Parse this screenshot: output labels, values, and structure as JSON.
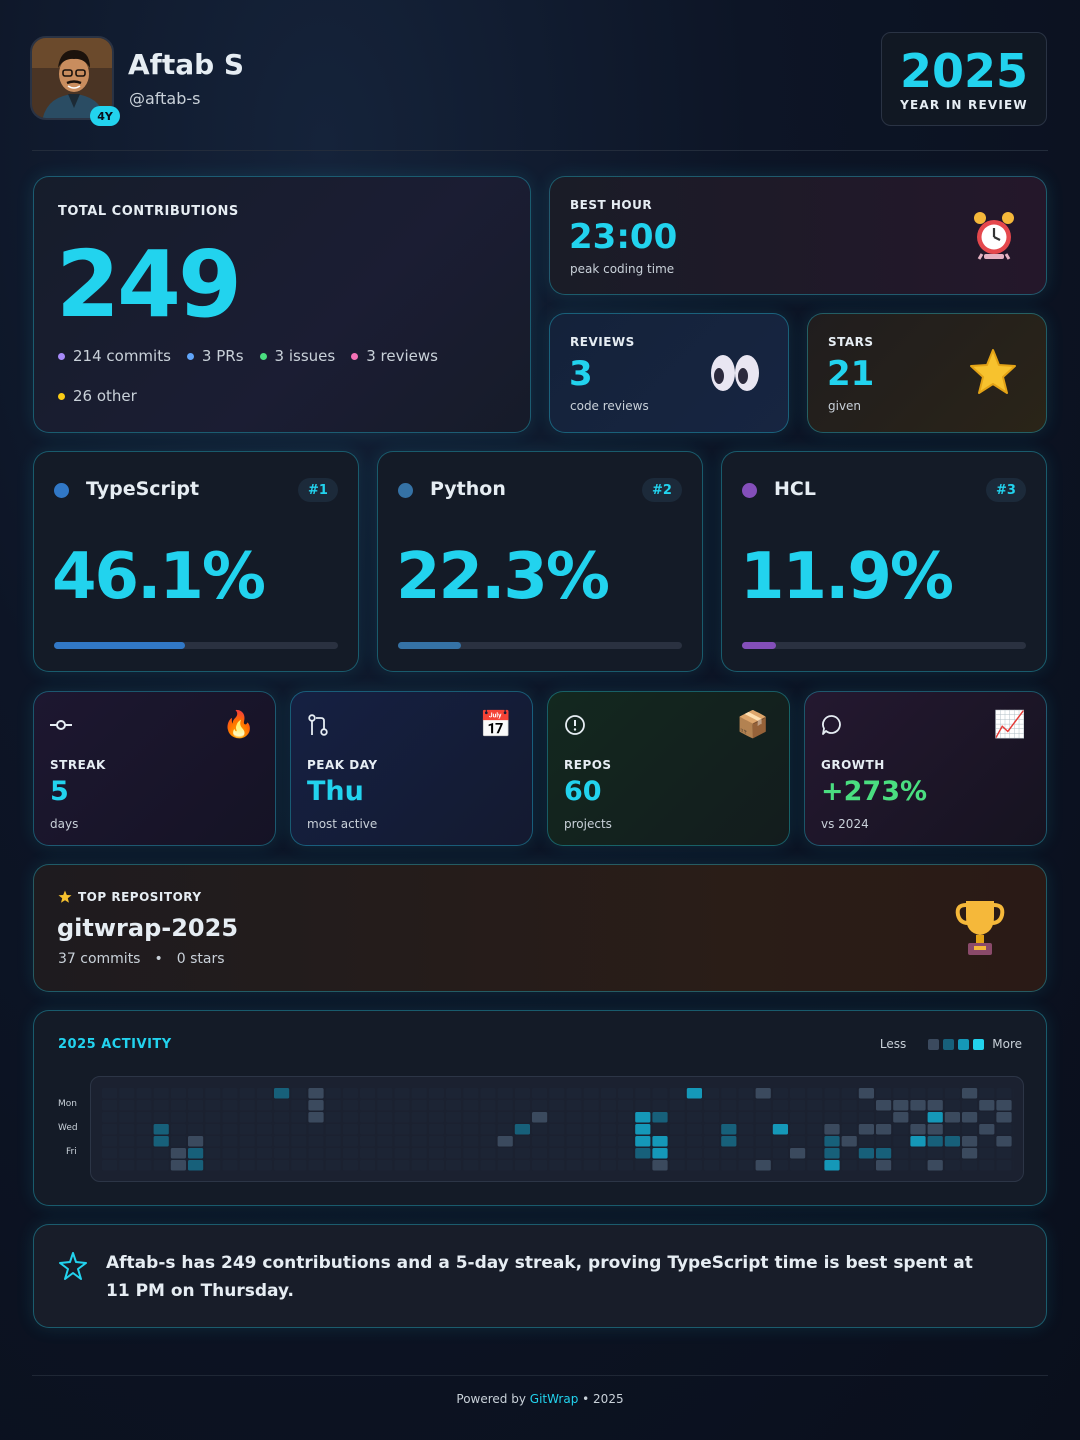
{
  "user": {
    "name": "Aftab S",
    "handle": "@aftab-s",
    "tenure_badge": "4Y"
  },
  "review": {
    "year": "2025",
    "label": "YEAR IN REVIEW"
  },
  "contributions": {
    "label": "TOTAL CONTRIBUTIONS",
    "total": "249",
    "breakdown": [
      {
        "text": "214 commits",
        "color": "#a78bfa"
      },
      {
        "text": "3 PRs",
        "color": "#60a5fa"
      },
      {
        "text": "3 issues",
        "color": "#4ade80"
      },
      {
        "text": "3 reviews",
        "color": "#f472b6"
      },
      {
        "text": "26 other",
        "color": "#facc15"
      }
    ]
  },
  "best_hour": {
    "label": "BEST HOUR",
    "value": "23:00",
    "sub": "peak coding time",
    "icon": "alarm-clock-icon"
  },
  "reviews": {
    "label": "REVIEWS",
    "value": "3",
    "sub": "code reviews",
    "icon": "eyes-icon"
  },
  "stars": {
    "label": "STARS",
    "value": "21",
    "sub": "given",
    "icon": "star-icon"
  },
  "languages": [
    {
      "name": "TypeScript",
      "rank": "#1",
      "percent": "46.1%",
      "fraction": 0.461,
      "color": "#3178c6"
    },
    {
      "name": "Python",
      "rank": "#2",
      "percent": "22.3%",
      "fraction": 0.223,
      "color": "#3572a5"
    },
    {
      "name": "HCL",
      "rank": "#3",
      "percent": "11.9%",
      "fraction": 0.119,
      "color": "#844fba"
    }
  ],
  "stats": [
    {
      "label": "STREAK",
      "value": "5",
      "sub": "days",
      "icon": "commit-icon",
      "emoji": "🔥",
      "value_color": "#22d3ee"
    },
    {
      "label": "PEAK DAY",
      "value": "Thu",
      "sub": "most active",
      "icon": "git-pull-request-icon",
      "emoji": "📅",
      "value_color": "#22d3ee"
    },
    {
      "label": "REPOS",
      "value": "60",
      "sub": "projects",
      "icon": "issue-icon",
      "emoji": "📦",
      "value_color": "#22d3ee"
    },
    {
      "label": "GROWTH",
      "value": "+273%",
      "sub": "vs 2024",
      "icon": "comment-icon",
      "emoji": "📈",
      "value_color": "#4ade80"
    }
  ],
  "top_repo": {
    "label": "TOP REPOSITORY",
    "name": "gitwrap-2025",
    "commits": "37 commits",
    "separator": "•",
    "stars": "0 stars",
    "icon": "trophy-icon"
  },
  "activity": {
    "title": "2025 ACTIVITY",
    "legend_less": "Less",
    "legend_more": "More",
    "day_labels": [
      "Mon",
      "Wed",
      "Fri"
    ],
    "colors": [
      "#1c2434",
      "#3b4a5e",
      "#17607a",
      "#1598b8",
      "#22d3ee"
    ],
    "grid": [
      "0000000000000000000000000000000000300000000000000000000000000000000",
      "0000000000000000000000000000000000000000000000000000000000000000000",
      "0000000000000000000000000000000000000000000000000000000000000000000",
      "0000000000000000000000000000000000000000000000000000000000000000000",
      "0000000000000000000000000000000000000000000000000000000000000000000",
      "0000000000000000000000000000000000000000000000000000000000000000000",
      "0000000000000000000000000000000000000000000000000000000000000000000",
      "0000000000000000000000000000000000000000000000000000000000000000000"
    ],
    "weeks": [
      [
        0,
        0,
        0,
        0,
        0,
        0,
        0
      ],
      [
        0,
        0,
        0,
        0,
        0,
        0,
        0
      ],
      [
        0,
        0,
        0,
        0,
        0,
        0,
        0
      ],
      [
        0,
        0,
        0,
        2,
        2,
        0,
        0
      ],
      [
        0,
        0,
        0,
        0,
        0,
        1,
        1
      ],
      [
        0,
        0,
        0,
        0,
        1,
        2,
        2
      ],
      [
        0,
        0,
        0,
        0,
        0,
        0,
        0
      ],
      [
        0,
        0,
        0,
        0,
        0,
        0,
        0
      ],
      [
        0,
        0,
        0,
        0,
        0,
        0,
        0
      ],
      [
        0,
        0,
        0,
        0,
        0,
        0,
        0
      ],
      [
        2,
        0,
        0,
        0,
        0,
        0,
        0
      ],
      [
        0,
        0,
        0,
        0,
        0,
        0,
        0
      ],
      [
        1,
        1,
        1,
        0,
        0,
        0,
        0
      ],
      [
        0,
        0,
        0,
        0,
        0,
        0,
        0
      ],
      [
        0,
        0,
        0,
        0,
        0,
        0,
        0
      ],
      [
        0,
        0,
        0,
        0,
        0,
        0,
        0
      ],
      [
        0,
        0,
        0,
        0,
        0,
        0,
        0
      ],
      [
        0,
        0,
        0,
        0,
        0,
        0,
        0
      ],
      [
        0,
        0,
        0,
        0,
        0,
        0,
        0
      ],
      [
        0,
        0,
        0,
        0,
        0,
        0,
        0
      ],
      [
        0,
        0,
        0,
        0,
        0,
        0,
        0
      ],
      [
        0,
        0,
        0,
        0,
        0,
        0,
        0
      ],
      [
        0,
        0,
        0,
        0,
        0,
        0,
        0
      ],
      [
        0,
        0,
        0,
        0,
        1,
        0,
        0
      ],
      [
        0,
        0,
        0,
        2,
        0,
        0,
        0
      ],
      [
        0,
        0,
        1,
        0,
        0,
        0,
        0
      ],
      [
        0,
        0,
        0,
        0,
        0,
        0,
        0
      ],
      [
        0,
        0,
        0,
        0,
        0,
        0,
        0
      ],
      [
        0,
        0,
        0,
        0,
        0,
        0,
        0
      ],
      [
        0,
        0,
        0,
        0,
        0,
        0,
        0
      ],
      [
        0,
        0,
        0,
        0,
        0,
        0,
        0
      ],
      [
        0,
        0,
        3,
        3,
        3,
        2,
        0
      ],
      [
        0,
        0,
        2,
        0,
        3,
        3,
        1
      ],
      [
        0,
        0,
        0,
        0,
        0,
        0,
        0
      ],
      [
        3,
        0,
        0,
        0,
        0,
        0,
        0
      ],
      [
        0,
        0,
        0,
        0,
        0,
        0,
        0
      ],
      [
        0,
        0,
        0,
        2,
        2,
        0,
        0
      ],
      [
        0,
        0,
        0,
        0,
        0,
        0,
        0
      ],
      [
        1,
        0,
        0,
        0,
        0,
        0,
        1
      ],
      [
        0,
        0,
        0,
        3,
        0,
        0,
        0
      ],
      [
        0,
        0,
        0,
        0,
        0,
        1,
        0
      ],
      [
        0,
        0,
        0,
        0,
        0,
        0,
        0
      ],
      [
        0,
        0,
        0,
        1,
        2,
        2,
        3
      ],
      [
        0,
        0,
        0,
        0,
        1,
        0,
        0
      ],
      [
        1,
        0,
        0,
        1,
        0,
        2,
        0
      ],
      [
        0,
        1,
        0,
        1,
        0,
        2,
        1
      ],
      [
        0,
        1,
        1,
        0,
        0,
        0,
        0
      ],
      [
        0,
        1,
        0,
        1,
        3,
        0,
        0
      ],
      [
        0,
        1,
        3,
        1,
        2,
        0,
        1
      ],
      [
        0,
        0,
        1,
        0,
        2,
        0,
        0
      ],
      [
        1,
        0,
        1,
        0,
        1,
        1,
        0
      ],
      [
        0,
        1,
        0,
        1,
        0,
        0,
        0
      ],
      [
        0,
        1,
        1,
        0,
        1,
        0,
        0
      ],
      [
        0,
        0,
        0,
        0,
        0,
        0,
        0
      ],
      [
        0,
        1,
        3,
        2,
        0,
        0,
        0
      ],
      [
        0,
        1,
        2,
        1,
        4,
        0,
        0
      ],
      [
        0,
        1,
        0,
        0,
        0,
        0,
        0
      ],
      [
        0,
        0,
        0,
        0,
        0,
        0,
        0
      ],
      [
        0,
        0,
        0,
        0,
        0,
        0,
        0
      ],
      [
        0,
        0,
        0,
        0,
        0,
        0,
        0
      ]
    ]
  },
  "summary": {
    "text": "Aftab-s has 249 contributions and a 5-day streak, proving TypeScript time is best spent at 11 PM on Thursday.",
    "icon": "sparkle-icon"
  },
  "footer": {
    "prefix": "Powered by ",
    "brand": "GitWrap",
    "suffix": " • 2025"
  }
}
